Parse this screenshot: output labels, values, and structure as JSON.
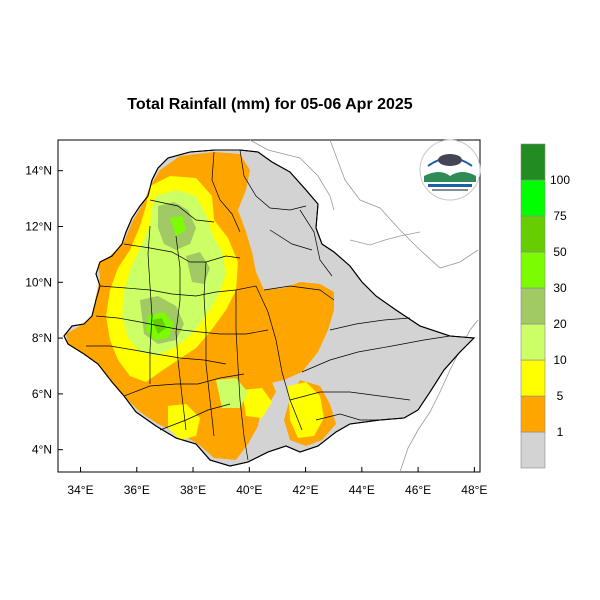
{
  "title": "Total Rainfall (mm) for 05-06 Apr 2025",
  "map": {
    "lon_range": [
      33,
      48
    ],
    "lat_range": [
      3,
      15
    ],
    "x_ticks": [
      "34°E",
      "36°E",
      "38°E",
      "40°E",
      "42°E",
      "44°E",
      "46°E",
      "48°E"
    ],
    "y_ticks": [
      "14°N",
      "12°N",
      "10°N",
      "8°N",
      "6°N",
      "4°N"
    ],
    "x_tick_values": [
      34,
      36,
      38,
      40,
      42,
      44,
      46,
      48
    ],
    "y_tick_values": [
      14,
      12,
      10,
      8,
      6,
      4
    ]
  },
  "legend": {
    "labels": [
      "1",
      "5",
      "10",
      "20",
      "30",
      "50",
      "75",
      "100"
    ],
    "colors": [
      "#d3d3d3",
      "#ffa500",
      "#ffff00",
      "#ccff66",
      "#a1c964",
      "#7cfc00",
      "#66cd00",
      "#00ff00",
      "#228b22"
    ]
  },
  "colors": {
    "background": "#ffffff",
    "no_rain": "#d3d3d3",
    "boundary": "#000000"
  },
  "logo_icon": "ethiopian-meteorology-institute-logo"
}
